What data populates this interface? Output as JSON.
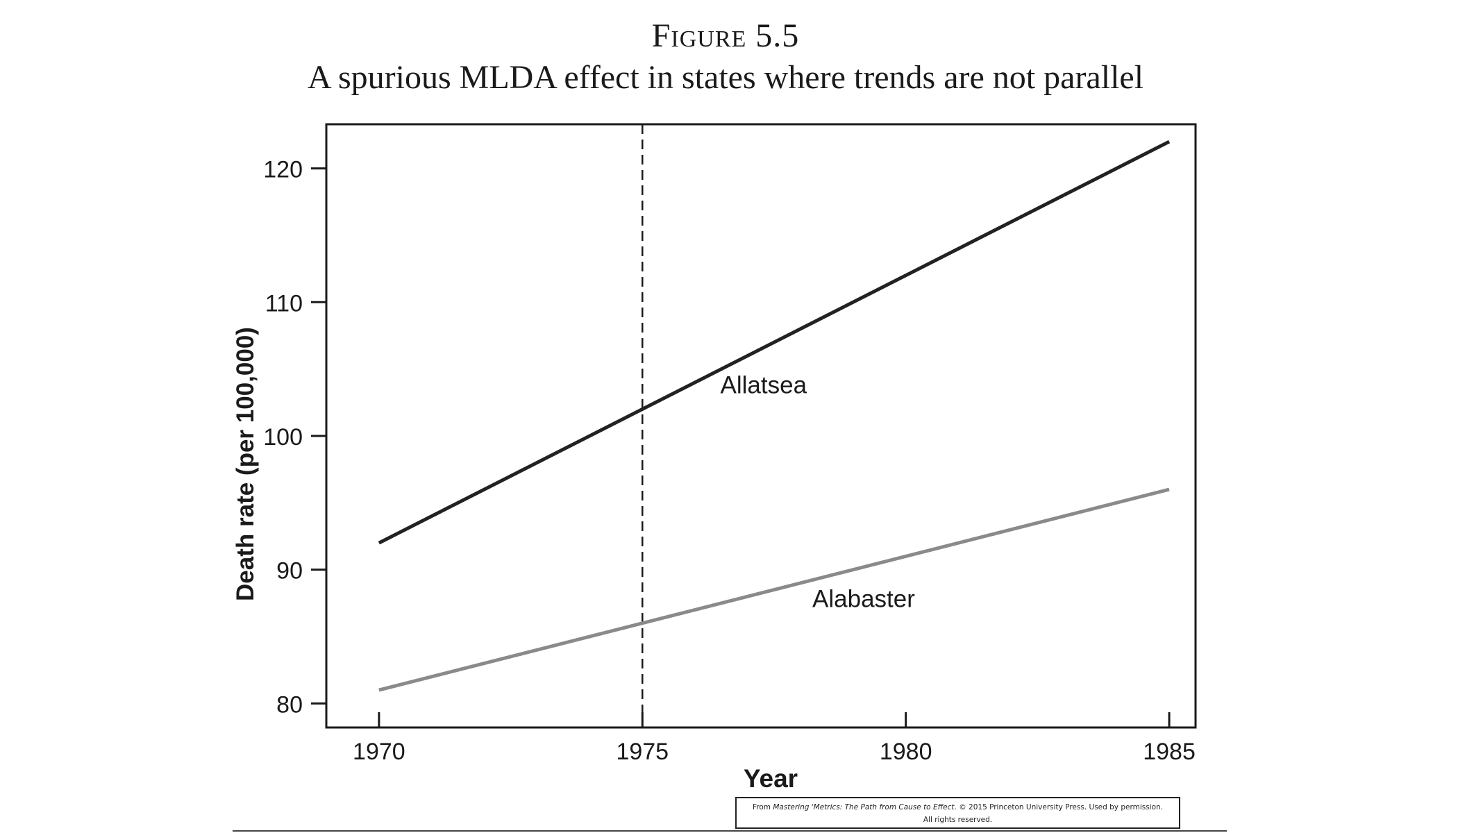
{
  "figure": {
    "label": "Figure 5.5",
    "title": "A spurious MLDA effect in states where trends are not parallel"
  },
  "credit": {
    "prefix": "From ",
    "book_title": "Mastering 'Metrics: The Path from Cause to Effect",
    "suffix": ". © 2015 Princeton University Press. Used by permission.",
    "line2": "All rights reserved."
  },
  "chart_data": {
    "type": "line",
    "xlabel": "Year",
    "ylabel": "Death rate (per 100,000)",
    "xlim": [
      1969,
      1985.5
    ],
    "ylim": [
      78.2,
      123.3
    ],
    "x_ticks": [
      1970,
      1975,
      1980,
      1985
    ],
    "y_ticks": [
      80,
      90,
      100,
      110,
      120
    ],
    "grid": false,
    "reference_line": {
      "x": 1975,
      "style": "dashed"
    },
    "series": [
      {
        "name": "Allatsea",
        "color": "#222222",
        "x": [
          1970,
          1985
        ],
        "y": [
          92,
          122
        ],
        "label_at": [
          1977.3,
          103.2
        ]
      },
      {
        "name": "Alabaster",
        "color": "#8a8a8a",
        "x": [
          1970,
          1985
        ],
        "y": [
          81,
          96
        ],
        "label_at": [
          1979.2,
          87.2
        ]
      }
    ]
  }
}
